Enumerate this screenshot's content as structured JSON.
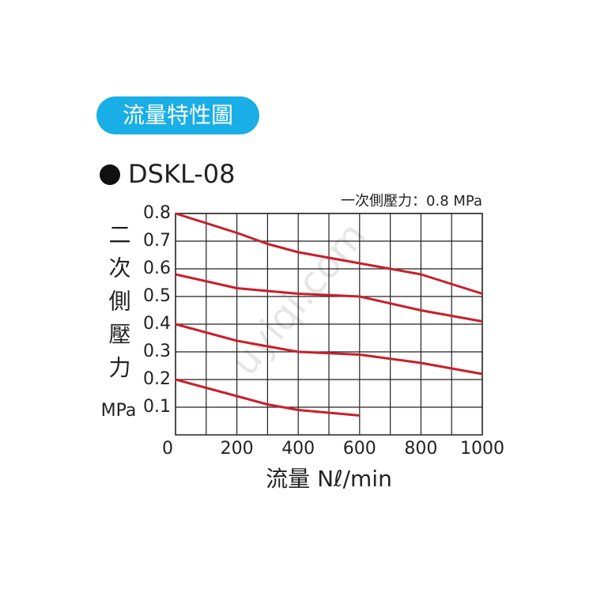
{
  "chart_data": {
    "type": "line",
    "badge": "流量特性圖",
    "title": "DSKL-08",
    "annotation": "一次側壓力：0.8 MPa",
    "ylabel": "二次側壓力",
    "yunit": "MPa",
    "xlabel": "流量 Nℓ/min",
    "watermark": "uyiqi.com",
    "x": [
      0,
      200,
      300,
      400,
      600,
      800,
      1000
    ],
    "series": [
      {
        "color": "#c8202a",
        "values": [
          0.8,
          0.73,
          0.69,
          0.66,
          0.62,
          0.58,
          0.51
        ]
      },
      {
        "color": "#c8202a",
        "values": [
          0.58,
          0.53,
          0.52,
          0.51,
          0.5,
          0.45,
          0.41
        ]
      },
      {
        "color": "#c8202a",
        "values": [
          0.4,
          0.34,
          0.32,
          0.3,
          0.29,
          0.26,
          0.22
        ]
      },
      {
        "color": "#c8202a",
        "values": [
          0.2,
          0.14,
          0.11,
          0.09,
          0.07,
          null,
          null
        ]
      }
    ],
    "xlim": [
      0,
      1000
    ],
    "xticks": [
      0,
      200,
      400,
      600,
      800,
      1000
    ],
    "ylim": [
      0,
      0.8
    ],
    "yticks": [
      0.1,
      0.2,
      0.3,
      0.4,
      0.5,
      0.6,
      0.7,
      0.8
    ],
    "grid": true
  }
}
